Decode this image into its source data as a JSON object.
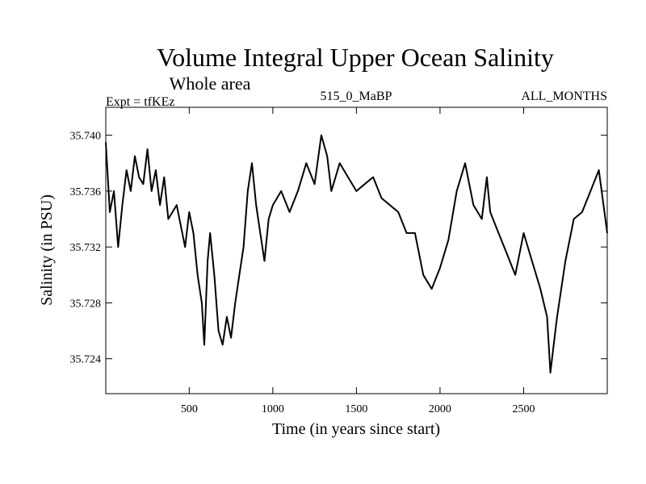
{
  "chart_data": {
    "type": "line",
    "title": "Volume Integral Upper Ocean Salinity",
    "subtitle": "Whole area",
    "header_left": "Expt = tfKEz",
    "header_center": "515_0_MaBP",
    "header_right": "ALL_MONTHS",
    "xlabel": "Time (in years since start)",
    "ylabel": "Salinity (in PSU)",
    "xlim": [
      1,
      3000
    ],
    "ylim": [
      35.7215,
      35.742
    ],
    "xticks": [
      500,
      1000,
      1500,
      2000,
      2500
    ],
    "xtick_labels": [
      "500",
      "1000",
      "1500",
      "2000",
      "2500"
    ],
    "yticks": [
      35.724,
      35.728,
      35.732,
      35.736,
      35.74
    ],
    "ytick_labels": [
      "35.724",
      "35.728",
      "35.732",
      "35.736",
      "35.740"
    ],
    "line_color": "#000000",
    "series": [
      {
        "x": [
          1,
          25,
          50,
          75,
          100,
          125,
          150,
          175,
          200,
          225,
          250,
          275,
          300,
          325,
          350,
          375,
          400,
          425,
          450,
          475,
          500,
          525,
          550,
          575,
          590,
          610,
          625,
          650,
          675,
          700,
          725,
          750,
          775,
          800,
          825,
          850,
          875,
          900,
          925,
          950,
          975,
          1000,
          1050,
          1100,
          1150,
          1200,
          1250,
          1290,
          1325,
          1350,
          1400,
          1450,
          1500,
          1550,
          1600,
          1650,
          1700,
          1750,
          1800,
          1850,
          1900,
          1950,
          2000,
          2050,
          2100,
          2150,
          2200,
          2250,
          2280,
          2300,
          2350,
          2400,
          2450,
          2500,
          2550,
          2600,
          2640,
          2660,
          2680,
          2700,
          2750,
          2800,
          2850,
          2900,
          2950,
          3000
        ],
        "y": [
          35.7395,
          35.7345,
          35.736,
          35.732,
          35.735,
          35.7375,
          35.736,
          35.7385,
          35.737,
          35.7365,
          35.739,
          35.736,
          35.7375,
          35.735,
          35.737,
          35.734,
          35.7345,
          35.735,
          35.7335,
          35.732,
          35.7345,
          35.733,
          35.73,
          35.728,
          35.725,
          35.731,
          35.733,
          35.73,
          35.726,
          35.725,
          35.727,
          35.7255,
          35.728,
          35.73,
          35.732,
          35.736,
          35.738,
          35.735,
          35.733,
          35.731,
          35.734,
          35.735,
          35.736,
          35.7345,
          35.736,
          35.738,
          35.7365,
          35.74,
          35.7385,
          35.736,
          35.738,
          35.737,
          35.736,
          35.7365,
          35.737,
          35.7355,
          35.735,
          35.7345,
          35.733,
          35.733,
          35.73,
          35.729,
          35.7305,
          35.7325,
          35.736,
          35.738,
          35.735,
          35.734,
          35.737,
          35.7345,
          35.733,
          35.7315,
          35.73,
          35.733,
          35.731,
          35.729,
          35.727,
          35.723,
          35.725,
          35.727,
          35.731,
          35.734,
          35.7345,
          35.736,
          35.7375,
          35.733
        ]
      }
    ]
  }
}
